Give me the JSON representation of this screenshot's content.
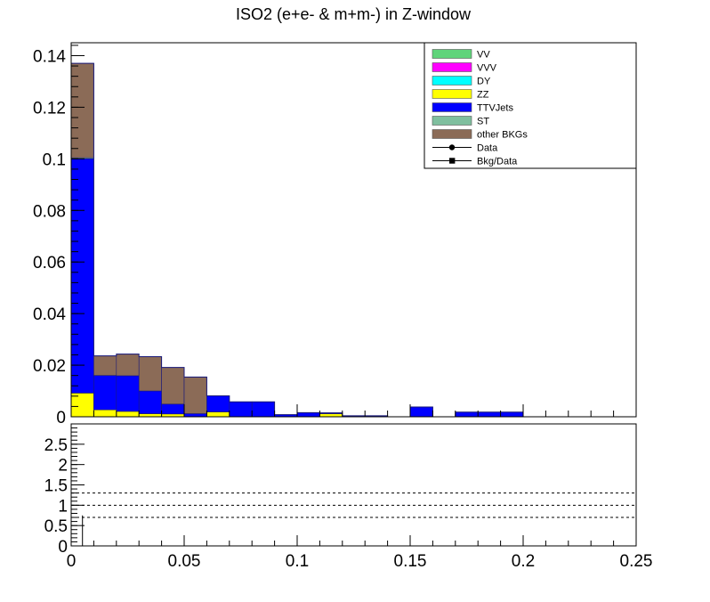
{
  "chart_data": [
    {
      "type": "bar",
      "stacked": true,
      "title": "ISO2 (e+e- & m+m-) in Z-window",
      "xlim": [
        0,
        0.25
      ],
      "ylim": [
        0,
        0.145
      ],
      "bin_width": 0.01,
      "x_bin_edges": [
        0,
        0.01,
        0.02,
        0.03,
        0.04,
        0.05,
        0.06,
        0.07,
        0.08,
        0.09,
        0.1,
        0.11,
        0.12,
        0.13,
        0.14,
        0.15,
        0.16,
        0.17,
        0.18,
        0.19,
        0.2,
        0.21,
        0.22,
        0.23,
        0.24,
        0.25
      ],
      "y_ticks": [
        "0",
        "0.02",
        "0.04",
        "0.06",
        "0.08",
        "0.1",
        "0.12",
        "0.14"
      ],
      "y_tick_values": [
        0,
        0.02,
        0.04,
        0.06,
        0.08,
        0.1,
        0.12,
        0.14
      ],
      "legend_position": "top-right",
      "legend": [
        {
          "label": "VV",
          "color": "#5fd47a",
          "style": "box"
        },
        {
          "label": "VVV",
          "color": "#ff00ff",
          "style": "box"
        },
        {
          "label": "DY",
          "color": "#00ffff",
          "style": "box"
        },
        {
          "label": "ZZ",
          "color": "#ffff00",
          "style": "box"
        },
        {
          "label": "TTVJets",
          "color": "#0000ff",
          "style": "box"
        },
        {
          "label": "ST",
          "color": "#7fbf9f",
          "style": "box"
        },
        {
          "label": "other BKGs",
          "color": "#8b6b57",
          "style": "box"
        },
        {
          "label": "Data",
          "color": "#000000",
          "style": "circle"
        },
        {
          "label": "Bkg/Data",
          "color": "#000000",
          "style": "square"
        }
      ],
      "series": [
        {
          "name": "ZZ",
          "color": "#ffff00",
          "values": [
            0.0092,
            0.0027,
            0.0021,
            0.0012,
            0.0011,
            0.0,
            0.0019,
            0.0,
            0.0,
            0.0,
            0.0,
            0.0012,
            0.0,
            0.0,
            0.0,
            0.0,
            0.0,
            0.0,
            0.0,
            0.0,
            0.0,
            0.0,
            0.0,
            0.0,
            0.0
          ]
        },
        {
          "name": "TTVJets",
          "color": "#0000ff",
          "values": [
            0.0908,
            0.0133,
            0.0138,
            0.0088,
            0.0038,
            0.0012,
            0.0062,
            0.0058,
            0.0058,
            0.0008,
            0.0016,
            0.0003,
            0.0004,
            0.0004,
            0.0,
            0.0038,
            0.0,
            0.0018,
            0.0018,
            0.0018,
            0.0,
            0.0,
            0.0,
            0.0,
            0.0
          ]
        },
        {
          "name": "ST",
          "color": "#7fbf9f",
          "values": [
            0.0004,
            0.0,
            0.0,
            0.0,
            0.0,
            0.0,
            0.0,
            0.0,
            0.0,
            0.0,
            0.0,
            0.0,
            0.0,
            0.0,
            0.0,
            0.0,
            0.0,
            0.0,
            0.0,
            0.0,
            0.0,
            0.0,
            0.0,
            0.0,
            0.0
          ]
        },
        {
          "name": "other BKGs",
          "color": "#8b6b57",
          "values": [
            0.0366,
            0.0076,
            0.0084,
            0.0133,
            0.0142,
            0.0142,
            0.0,
            0.0,
            0.0,
            0.0,
            0.0,
            0.0,
            0.0,
            0.0,
            0.0,
            0.0,
            0.0,
            0.0,
            0.0,
            0.0,
            0.0,
            0.0,
            0.0,
            0.0,
            0.0
          ]
        }
      ]
    },
    {
      "type": "scatter",
      "panel": "ratio",
      "xlim": [
        0,
        0.25
      ],
      "ylim": [
        0,
        3
      ],
      "x_ticks": [
        "0",
        "0.05",
        "0.1",
        "0.15",
        "0.2",
        "0.25"
      ],
      "x_tick_values": [
        0,
        0.05,
        0.1,
        0.15,
        0.2,
        0.25
      ],
      "y_ticks": [
        "0",
        "0.5",
        "1",
        "1.5",
        "2",
        "2.5"
      ],
      "y_tick_values": [
        0,
        0.5,
        1,
        1.5,
        2,
        2.5
      ],
      "reference_lines": [
        0.7,
        1.0,
        1.3
      ],
      "error_bars": [
        {
          "x": 0.005,
          "low": 0.0,
          "high": 0.75
        }
      ]
    }
  ]
}
